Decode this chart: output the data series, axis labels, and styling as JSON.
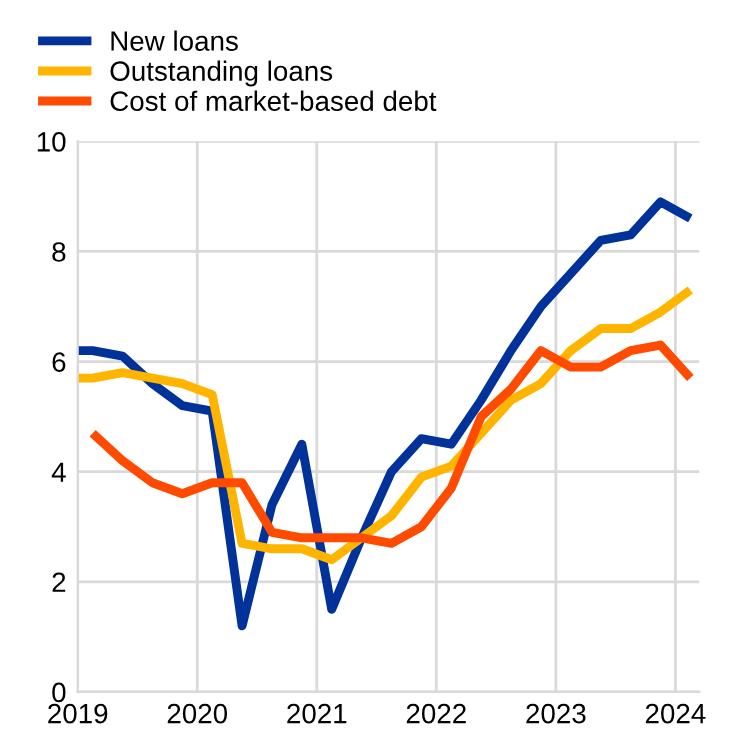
{
  "chart_data": {
    "type": "line",
    "xlim": [
      2019,
      2024.2
    ],
    "xticks": [
      2019,
      2020,
      2021,
      2022,
      2023,
      2024
    ],
    "ylim": [
      0,
      10
    ],
    "yticks": [
      0,
      2,
      4,
      6,
      8,
      10
    ],
    "grid": true,
    "legend": "top left",
    "line_style": "solid",
    "marker": "none",
    "series": [
      {
        "name": "New loans",
        "color": "#003299",
        "x": [
          2019.0,
          2019.125,
          2019.375,
          2019.625,
          2019.875,
          2020.125,
          2020.375,
          2020.625,
          2020.875,
          2021.125,
          2021.375,
          2021.625,
          2021.875,
          2022.125,
          2022.375,
          2022.625,
          2022.875,
          2023.125,
          2023.375,
          2023.625,
          2023.875,
          2024.125
        ],
        "values": [
          6.2,
          6.2,
          6.1,
          5.6,
          5.2,
          5.1,
          1.2,
          3.4,
          4.5,
          1.5,
          2.8,
          4.0,
          4.6,
          4.5,
          5.3,
          6.2,
          7.0,
          7.6,
          8.2,
          8.3,
          8.9,
          8.6
        ]
      },
      {
        "name": "Outstanding loans",
        "color": "#ffb400",
        "x": [
          2019.0,
          2019.125,
          2019.375,
          2019.625,
          2019.875,
          2020.125,
          2020.375,
          2020.625,
          2020.875,
          2021.125,
          2021.375,
          2021.625,
          2021.875,
          2022.125,
          2022.375,
          2022.625,
          2022.875,
          2023.125,
          2023.375,
          2023.625,
          2023.875,
          2024.125
        ],
        "values": [
          5.7,
          5.7,
          5.8,
          5.7,
          5.6,
          5.4,
          2.7,
          2.6,
          2.6,
          2.4,
          2.8,
          3.2,
          3.9,
          4.1,
          4.7,
          5.3,
          5.6,
          6.2,
          6.6,
          6.6,
          6.9,
          7.3
        ]
      },
      {
        "name": "Cost of market-based debt",
        "color": "#ff4b00",
        "x": [
          2019.125,
          2019.375,
          2019.625,
          2019.875,
          2020.125,
          2020.375,
          2020.625,
          2020.875,
          2021.125,
          2021.375,
          2021.625,
          2021.875,
          2022.125,
          2022.375,
          2022.625,
          2022.875,
          2023.125,
          2023.375,
          2023.625,
          2023.875,
          2024.125
        ],
        "values": [
          4.7,
          4.2,
          3.8,
          3.6,
          3.8,
          3.8,
          2.9,
          2.8,
          2.8,
          2.8,
          2.7,
          3.0,
          3.7,
          5.0,
          5.5,
          6.2,
          5.9,
          5.9,
          6.2,
          6.3,
          5.7
        ]
      }
    ]
  }
}
